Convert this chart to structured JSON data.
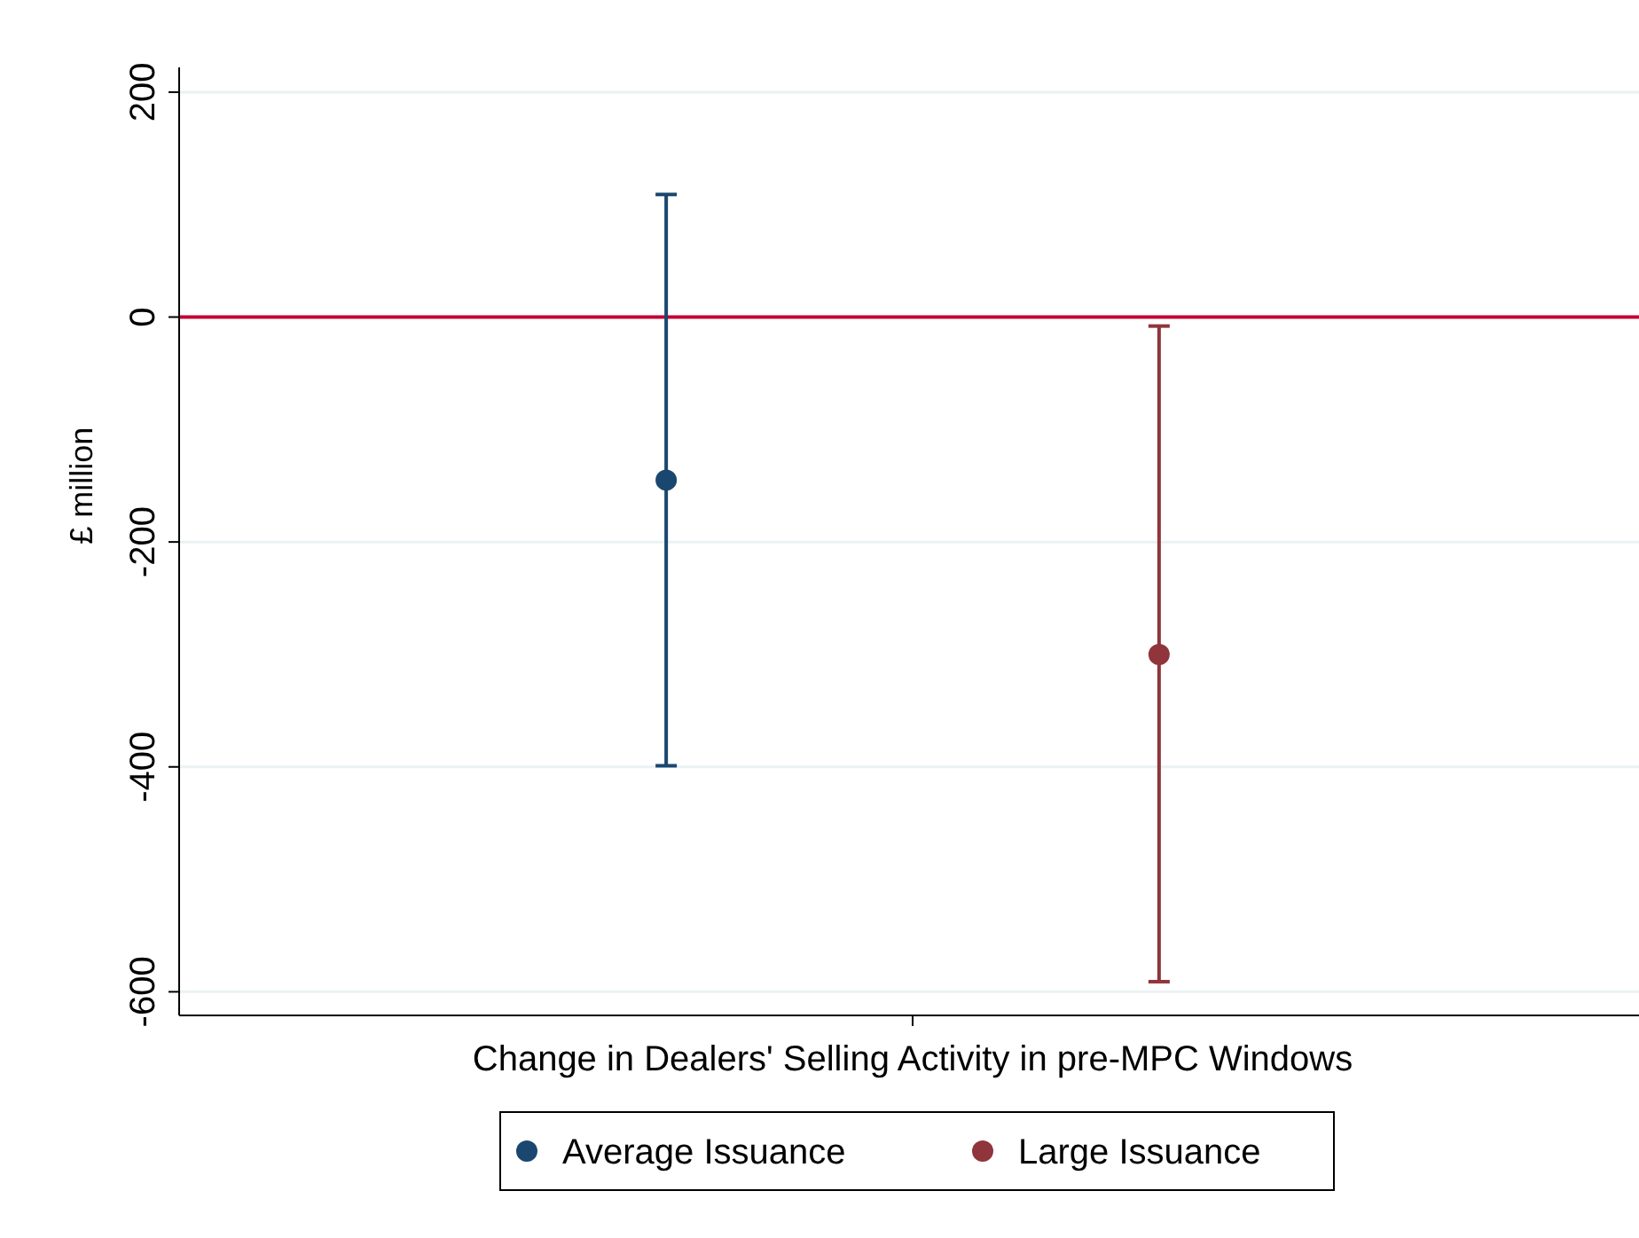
{
  "chart_data": {
    "type": "scatter",
    "ylabel": "£ million",
    "categories": [
      "Change in Dealers' Selling Activity in pre-MPC Windows"
    ],
    "ylim": [
      -621,
      222
    ],
    "yticks": [
      -600,
      -400,
      -200,
      0,
      200
    ],
    "grid": "y",
    "legend": "bottom",
    "marker": "circle",
    "series": [
      {
        "name": "Average Issuance",
        "color": "#1a476f",
        "values": [
          -145
        ],
        "errors": [
          [
            -399,
            109
          ]
        ]
      },
      {
        "name": "Large Issuance",
        "color": "#90353b",
        "values": [
          -300
        ],
        "errors": [
          [
            -591,
            -8
          ]
        ]
      }
    ],
    "ref_lines": [
      {
        "axis": "y",
        "value": 0,
        "label": null,
        "color": "#c10534"
      }
    ]
  }
}
